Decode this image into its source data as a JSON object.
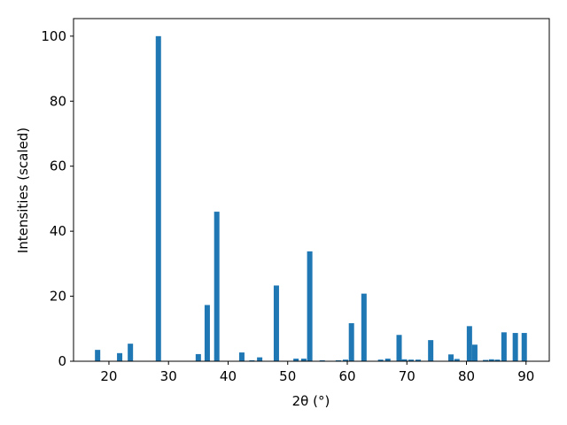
{
  "chart_data": {
    "type": "bar",
    "xlabel": "2θ (°)",
    "ylabel": "Intensities (scaled)",
    "x": [
      18.1,
      21.8,
      23.6,
      28.3,
      35.0,
      36.5,
      38.1,
      42.3,
      44.0,
      45.3,
      48.1,
      51.4,
      52.7,
      53.7,
      55.8,
      58.5,
      59.7,
      60.7,
      62.8,
      65.6,
      66.8,
      68.7,
      69.6,
      70.7,
      71.9,
      74.0,
      77.4,
      78.4,
      80.5,
      81.4,
      83.2,
      84.2,
      85.2,
      86.3,
      88.2,
      89.7
    ],
    "values": [
      3.5,
      2.5,
      5.4,
      100,
      2.2,
      17.3,
      46,
      2.7,
      0.3,
      1.2,
      23.3,
      0.8,
      0.8,
      33.8,
      0.3,
      0.3,
      0.5,
      11.7,
      20.8,
      0.5,
      0.8,
      8.1,
      0.6,
      0.5,
      0.5,
      6.5,
      2.1,
      0.7,
      10.8,
      5.1,
      0.4,
      0.6,
      0.5,
      8.9,
      8.7,
      8.7
    ],
    "color": "#1f77b4",
    "xlim": [
      14.06,
      93.9
    ],
    "xticks": [
      20,
      30,
      40,
      50,
      60,
      70,
      80,
      90
    ],
    "ylim": [
      0,
      105.4
    ],
    "yticks": [
      0,
      20,
      40,
      60,
      80,
      100
    ]
  }
}
